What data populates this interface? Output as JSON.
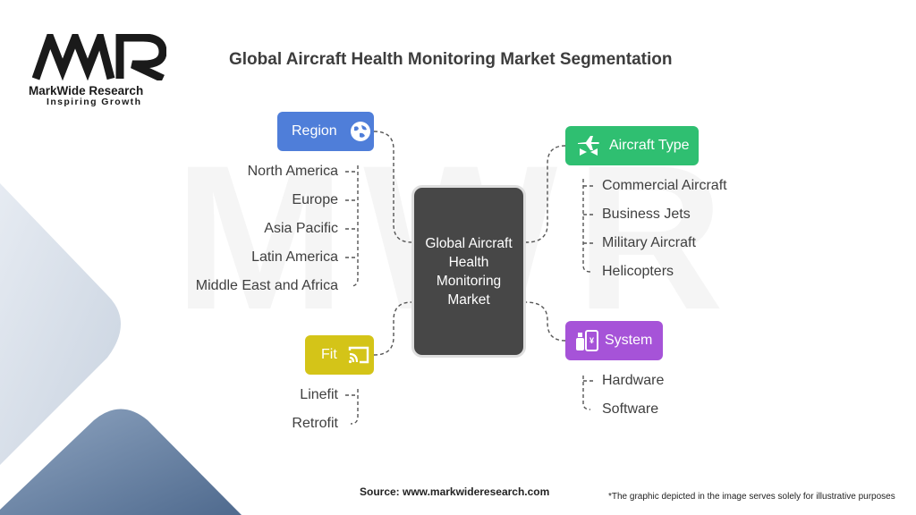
{
  "logo": {
    "mark": "MWR",
    "name": "MarkWide Research",
    "tagline": "Inspiring Growth"
  },
  "title": "Global Aircraft Health Monitoring Market Segmentation",
  "center": "Global Aircraft Health Monitoring Market",
  "segments": {
    "region": {
      "label": "Region",
      "icon": "globe-icon",
      "color": "#4f7ed9",
      "items": [
        "North America",
        "Europe",
        "Asia Pacific",
        "Latin America",
        "Middle East and Africa"
      ]
    },
    "aircraft_type": {
      "label": "Aircraft Type",
      "icon": "airplane-icon",
      "color": "#2fbf71",
      "items": [
        "Commercial Aircraft",
        "Business Jets",
        "Military Aircraft",
        "Helicopters"
      ]
    },
    "fit": {
      "label": "Fit",
      "icon": "cast-icon",
      "color": "#d4c418",
      "items": [
        "Linefit",
        "Retrofit"
      ]
    },
    "system": {
      "label": "System",
      "icon": "devices-icon",
      "color": "#a653d8",
      "items": [
        "Hardware",
        "Software"
      ]
    }
  },
  "footer": {
    "source": "Source: www.markwideresearch.com",
    "note": "*The graphic depicted in the image serves solely for illustrative purposes"
  }
}
